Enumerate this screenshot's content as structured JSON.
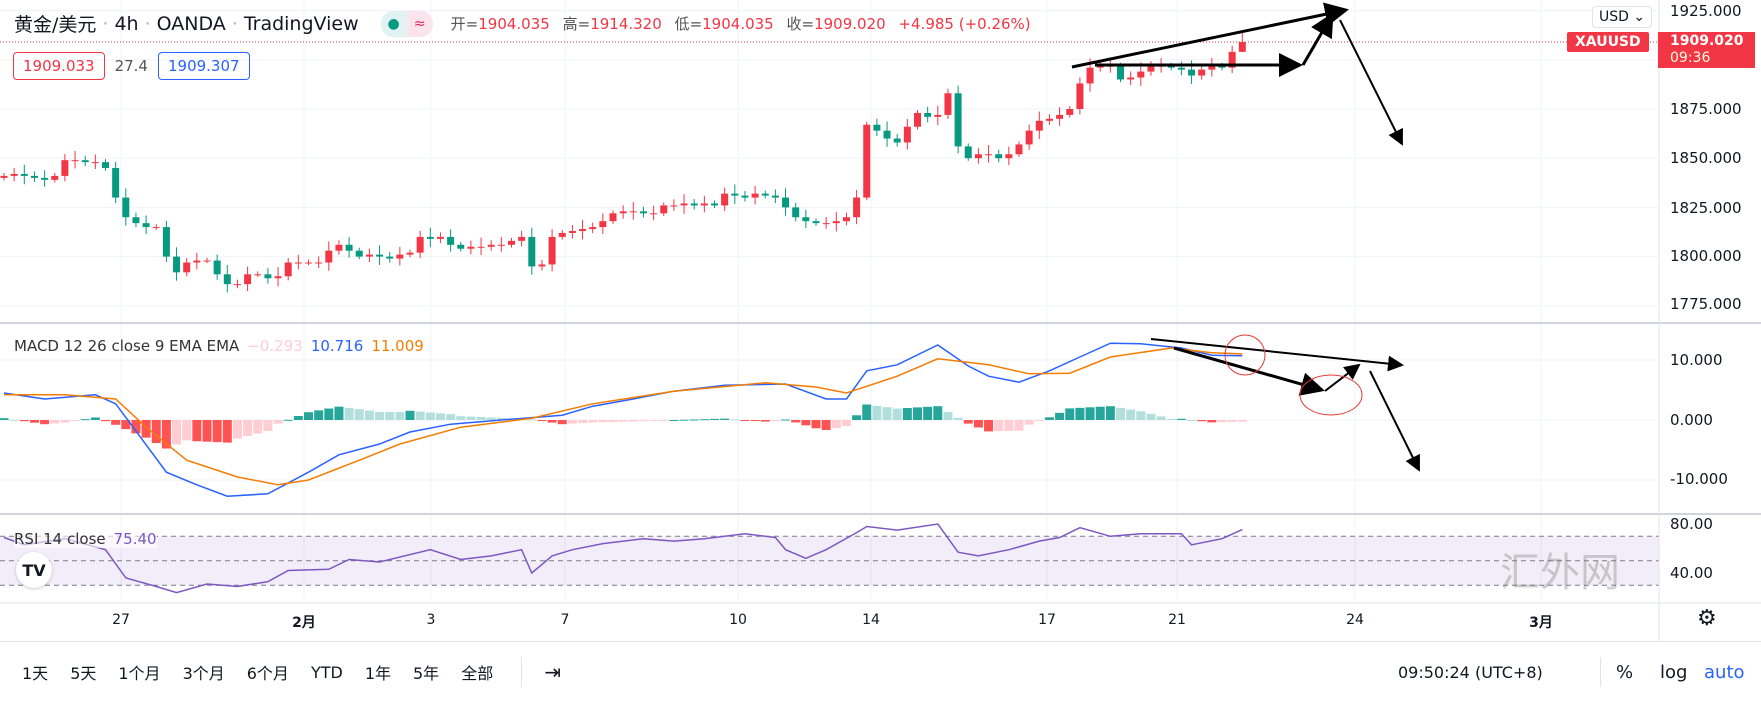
{
  "header": {
    "symbol": "黄金/美元",
    "interval": "4h",
    "exchange": "OANDA",
    "source": "TradingView",
    "ohlc": {
      "open_label": "开",
      "open": "1904.035",
      "high_label": "高",
      "high": "1914.320",
      "low_label": "低",
      "low": "1904.035",
      "close_label": "收",
      "close": "1909.020",
      "change": "+4.985 (+0.26%)"
    },
    "bid": "1909.033",
    "spread": "27.4",
    "ask": "1909.307"
  },
  "price_axis": {
    "currency": "USD",
    "ticks": [
      "1925.000",
      "1875.000",
      "1850.000",
      "1825.000",
      "1800.000",
      "1775.000"
    ],
    "last_symbol": "XAUUSD",
    "last_price": "1909.020",
    "countdown": "09:36"
  },
  "macd": {
    "label": "MACD 12 26 close 9 EMA EMA",
    "hist_value": "−0.293",
    "macd_value": "10.716",
    "signal_value": "11.009",
    "ticks": [
      "10.000",
      "0.000",
      "-10.000"
    ]
  },
  "rsi": {
    "label": "RSI 14 close",
    "value": "75.40",
    "ticks": [
      "80.00",
      "40.00"
    ]
  },
  "time_axis": [
    "27",
    "2月",
    "3",
    "7",
    "10",
    "14",
    "17",
    "21",
    "24",
    "3月"
  ],
  "toolbar": {
    "ranges": [
      "1天",
      "5天",
      "1个月",
      "3个月",
      "6个月",
      "YTD",
      "1年",
      "5年",
      "全部"
    ],
    "clock": "09:50:24 (UTC+8)",
    "percent": "%",
    "log": "log",
    "auto": "auto"
  },
  "watermark": "汇外网",
  "colors": {
    "up": "#f23645",
    "down": "#089981",
    "macd": "#2962ff",
    "signal": "#f57c00",
    "rsi": "#7e57c2"
  },
  "chart_data": {
    "type": "candlestick",
    "closes": [
      1841,
      1842,
      1841,
      1840,
      1839,
      1841,
      1849,
      1849,
      1848,
      1848,
      1845,
      1830,
      1820,
      1817,
      1815,
      1815,
      1800,
      1792,
      1797,
      1798,
      1798,
      1791,
      1786,
      1786,
      1791,
      1791,
      1789,
      1790,
      1797,
      1797,
      1797,
      1797,
      1803,
      1806,
      1803,
      1800,
      1801,
      1800,
      1799,
      1801,
      1802,
      1810,
      1809,
      1810,
      1806,
      1804,
      1805,
      1805,
      1806,
      1806,
      1808,
      1810,
      1795,
      1796,
      1810,
      1812,
      1813,
      1814,
      1815,
      1818,
      1822,
      1823,
      1823,
      1822,
      1822,
      1826,
      1826,
      1827,
      1826,
      1827,
      1826,
      1832,
      1831,
      1830,
      1832,
      1831,
      1830,
      1825,
      1820,
      1818,
      1817,
      1817,
      1818,
      1820,
      1830,
      1867,
      1864,
      1860,
      1858,
      1866,
      1873,
      1871,
      1872,
      1883,
      1856,
      1850,
      1852,
      1852,
      1850,
      1852,
      1857,
      1864,
      1869,
      1870,
      1872,
      1875,
      1888,
      1896,
      1897,
      1897,
      1890,
      1891,
      1894,
      1897,
      1897,
      1896,
      1895,
      1892,
      1895,
      1897,
      1896,
      1904.035,
      1909.02
    ],
    "last_bar": {
      "open": 1904.035,
      "high": 1914.32,
      "low": 1904.035,
      "close": 1909.02
    },
    "price_range": [
      1765,
      1928
    ],
    "macd_line": [
      [
        0,
        4.5
      ],
      [
        4,
        3.5
      ],
      [
        9,
        4.2
      ],
      [
        11,
        2.7
      ],
      [
        16,
        -8.7
      ],
      [
        19,
        -10.8
      ],
      [
        22,
        -12.7
      ],
      [
        26,
        -12.3
      ],
      [
        30,
        -8.7
      ],
      [
        33,
        -5.8
      ],
      [
        37,
        -4
      ],
      [
        40,
        -2
      ],
      [
        44,
        -0.7
      ],
      [
        49,
        0
      ],
      [
        55,
        0.8
      ],
      [
        58,
        2.3
      ],
      [
        62,
        3.5
      ],
      [
        66,
        4.8
      ],
      [
        71,
        5.8
      ],
      [
        77,
        6
      ],
      [
        81,
        3.5
      ],
      [
        83,
        3.5
      ],
      [
        85,
        8.2
      ],
      [
        88,
        9.2
      ],
      [
        92,
        12.5
      ],
      [
        95,
        9
      ],
      [
        97,
        7.3
      ],
      [
        100,
        6.3
      ],
      [
        103,
        8.2
      ],
      [
        106,
        10.5
      ],
      [
        109,
        12.8
      ],
      [
        112,
        12.7
      ],
      [
        116,
        12
      ],
      [
        119,
        10.8
      ],
      [
        122,
        10.716
      ]
    ],
    "signal_line": [
      [
        0,
        4.2
      ],
      [
        6,
        4.2
      ],
      [
        11,
        3.5
      ],
      [
        14,
        -1.2
      ],
      [
        18,
        -6.7
      ],
      [
        23,
        -9.5
      ],
      [
        27,
        -10.8
      ],
      [
        30,
        -10
      ],
      [
        35,
        -6.7
      ],
      [
        39,
        -4
      ],
      [
        45,
        -1.2
      ],
      [
        52,
        0.3
      ],
      [
        58,
        2.7
      ],
      [
        66,
        4.8
      ],
      [
        75,
        6.2
      ],
      [
        80,
        5.5
      ],
      [
        83,
        4.5
      ],
      [
        88,
        7.3
      ],
      [
        92,
        10.2
      ],
      [
        97,
        9.2
      ],
      [
        101,
        7.7
      ],
      [
        105,
        7.8
      ],
      [
        109,
        10.5
      ],
      [
        115,
        12
      ],
      [
        119,
        11.2
      ],
      [
        122,
        11.009
      ]
    ],
    "rsi_line": [
      [
        0,
        69
      ],
      [
        2,
        63
      ],
      [
        6,
        68
      ],
      [
        10,
        59
      ],
      [
        12,
        36
      ],
      [
        15,
        29
      ],
      [
        17,
        24
      ],
      [
        20,
        31
      ],
      [
        23,
        29
      ],
      [
        26,
        33
      ],
      [
        28,
        42
      ],
      [
        32,
        43
      ],
      [
        34,
        51
      ],
      [
        37,
        49
      ],
      [
        42,
        59
      ],
      [
        45,
        51
      ],
      [
        48,
        54
      ],
      [
        51,
        59
      ],
      [
        52,
        40
      ],
      [
        54,
        54
      ],
      [
        56,
        59
      ],
      [
        59,
        64
      ],
      [
        63,
        68
      ],
      [
        66,
        66
      ],
      [
        69,
        68
      ],
      [
        73,
        72
      ],
      [
        76,
        69
      ],
      [
        77,
        59
      ],
      [
        79,
        52
      ],
      [
        81,
        59
      ],
      [
        84,
        73
      ],
      [
        85,
        78
      ],
      [
        88,
        75
      ],
      [
        92,
        80
      ],
      [
        94,
        57
      ],
      [
        96,
        54
      ],
      [
        99,
        59
      ],
      [
        102,
        66
      ],
      [
        104,
        69
      ],
      [
        106,
        77
      ],
      [
        109,
        70
      ],
      [
        112,
        72
      ],
      [
        116,
        72
      ],
      [
        117,
        63
      ],
      [
        120,
        68
      ],
      [
        122,
        75.4
      ]
    ],
    "rsi_bands": [
      70,
      50,
      30
    ]
  }
}
